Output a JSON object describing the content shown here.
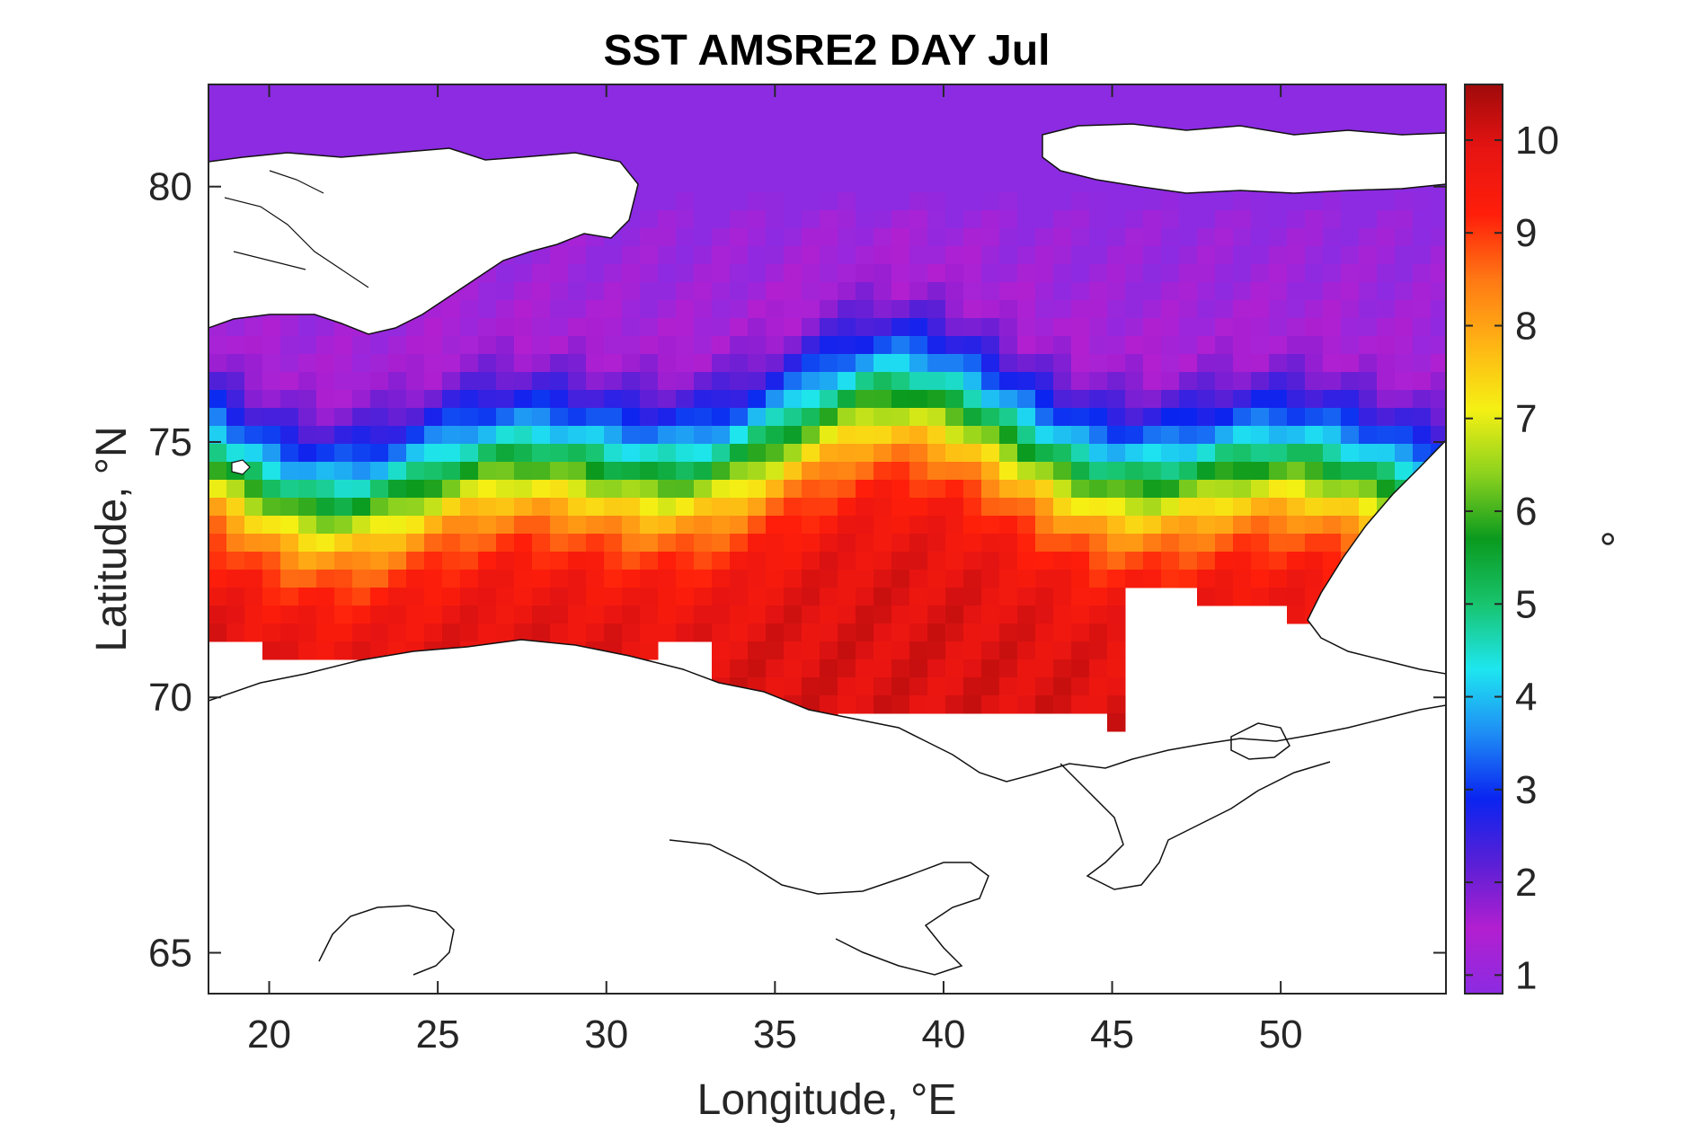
{
  "chart_data": {
    "type": "heatmap",
    "title": "SST AMSRE2 DAY Jul",
    "xlabel": "Longitude, °E",
    "ylabel": "Latitude, °N",
    "xlim": [
      18.2,
      54.9
    ],
    "ylim": [
      64.2,
      82.0
    ],
    "xticks": [
      20,
      25,
      30,
      35,
      40,
      45,
      50
    ],
    "xtick_labels": [
      "20",
      "25",
      "30",
      "35",
      "40",
      "45",
      "50"
    ],
    "yticks": [
      65,
      70,
      75,
      80
    ],
    "ytick_labels": [
      "65",
      "70",
      "75",
      "80"
    ],
    "colorbar": {
      "label": "°",
      "range": [
        0.8,
        10.6
      ],
      "ticks": [
        1,
        2,
        3,
        4,
        5,
        6,
        7,
        8,
        9,
        10
      ],
      "tick_labels": [
        "1",
        "2",
        "3",
        "4",
        "5",
        "6",
        "7",
        "8",
        "9",
        "10"
      ],
      "colors": [
        "#8c2be2",
        "#b21fd0",
        "#5a1fd6",
        "#0a24f0",
        "#1e8cf5",
        "#1ee6f0",
        "#18c46e",
        "#0a9a1e",
        "#8cd21e",
        "#f5f014",
        "#ffb414",
        "#ff7814",
        "#ff1e0a",
        "#e61412",
        "#a00a0a"
      ]
    },
    "grid": false,
    "field": {
      "description_values": "Sea surface temperature increases from about 1-3 in the north (near 80-82°N) to about 10 near the southern coast (70-72°N), with a wavy 5-7 front near 74-76°N.",
      "north_value": 2.0,
      "south_value": 10.0
    }
  }
}
